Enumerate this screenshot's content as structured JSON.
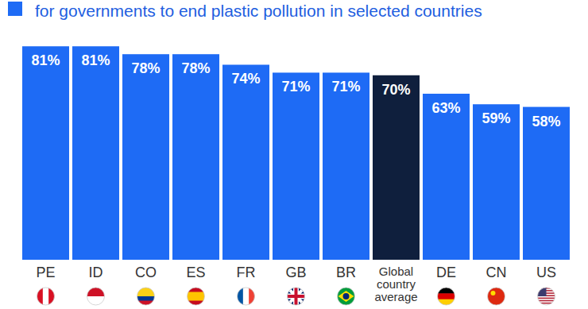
{
  "chart_data": {
    "type": "bar",
    "title": "for governments to end plastic pollution in selected countries",
    "categories": [
      "PE",
      "ID",
      "CO",
      "ES",
      "FR",
      "GB",
      "BR",
      "Global country average",
      "DE",
      "CN",
      "US"
    ],
    "values": [
      81,
      81,
      78,
      78,
      74,
      71,
      71,
      70,
      63,
      59,
      58
    ],
    "value_labels": [
      "81%",
      "81%",
      "78%",
      "78%",
      "74%",
      "71%",
      "71%",
      "70%",
      "63%",
      "59%",
      "58%"
    ],
    "colors": [
      "#1e6bf5",
      "#1e6bf5",
      "#1e6bf5",
      "#1e6bf5",
      "#1e6bf5",
      "#1e6bf5",
      "#1e6bf5",
      "#0f1f3d",
      "#1e6bf5",
      "#1e6bf5",
      "#1e6bf5"
    ],
    "ylim": [
      0,
      85
    ],
    "data_labels": true,
    "tick_labels": "x",
    "grid": false
  }
}
